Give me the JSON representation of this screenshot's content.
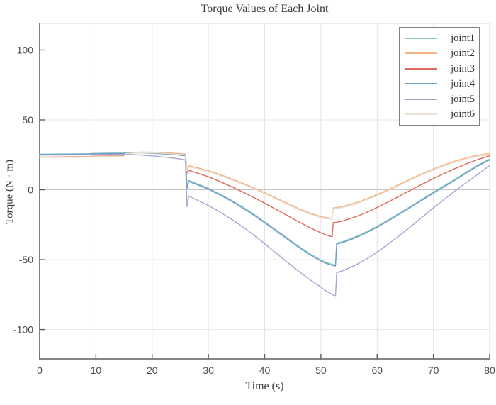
{
  "figure": {
    "title": "Torque Values of Each Joint"
  },
  "chart_data": {
    "type": "line",
    "title": "Torque Values of Each Joint",
    "xlabel": "Time (s)",
    "ylabel": "Torque (N · m)",
    "xlim": [
      0,
      80
    ],
    "ylim": [
      -121,
      119
    ],
    "xticks": [
      0,
      10,
      20,
      30,
      40,
      50,
      60,
      70,
      80
    ],
    "yticks": [
      -100,
      -50,
      0,
      50,
      100
    ],
    "grid": true,
    "legend_position": "top-right",
    "series": [
      {
        "name": "joint1",
        "color": "#8fc5bf",
        "points": [
          [
            0,
            25.5
          ],
          [
            3,
            25.6
          ],
          [
            6,
            25.7
          ],
          [
            9,
            25.8
          ],
          [
            9.2,
            26.0
          ],
          [
            12,
            26.2
          ],
          [
            15,
            26.3
          ],
          [
            15.3,
            26.6
          ],
          [
            18,
            26.6
          ],
          [
            21,
            26.2
          ],
          [
            24,
            25.5
          ],
          [
            25.9,
            24.7
          ],
          [
            26.2,
            1.5
          ],
          [
            26.5,
            6.7
          ],
          [
            28,
            4.3
          ],
          [
            30,
            1.1
          ],
          [
            32,
            -2.9
          ],
          [
            34,
            -7.3
          ],
          [
            36,
            -12.1
          ],
          [
            38,
            -17.3
          ],
          [
            40,
            -22.9
          ],
          [
            42,
            -28.7
          ],
          [
            44,
            -34.5
          ],
          [
            46,
            -40.3
          ],
          [
            48,
            -45.7
          ],
          [
            50,
            -50.3
          ],
          [
            51,
            -52.1
          ],
          [
            52,
            -53.3
          ],
          [
            52.2,
            -53.6
          ],
          [
            52.6,
            -53.9
          ],
          [
            52.8,
            -38.2
          ],
          [
            54,
            -36.9
          ],
          [
            56,
            -33.9
          ],
          [
            58,
            -30.3
          ],
          [
            60,
            -26.1
          ],
          [
            62,
            -21.5
          ],
          [
            64,
            -16.7
          ],
          [
            66,
            -11.7
          ],
          [
            68,
            -6.7
          ],
          [
            70,
            -1.7
          ],
          [
            72,
            3.1
          ],
          [
            74,
            7.9
          ],
          [
            76,
            13.1
          ],
          [
            78,
            17.9
          ],
          [
            80,
            22.0
          ]
        ]
      },
      {
        "name": "joint2",
        "color": "#f2b385",
        "points": [
          [
            0,
            23.4
          ],
          [
            3,
            23.5
          ],
          [
            6,
            23.6
          ],
          [
            9,
            23.7
          ],
          [
            9.2,
            24.0
          ],
          [
            12,
            24.2
          ],
          [
            15,
            24.4
          ],
          [
            15.3,
            26.4
          ],
          [
            18,
            26.9
          ],
          [
            21,
            26.8
          ],
          [
            24,
            26.1
          ],
          [
            25.9,
            25.5
          ],
          [
            26.2,
            14.0
          ],
          [
            26.5,
            17.2
          ],
          [
            28,
            15.8
          ],
          [
            30,
            13.6
          ],
          [
            32,
            11.0
          ],
          [
            34,
            8.0
          ],
          [
            36,
            4.8
          ],
          [
            38,
            1.5
          ],
          [
            40,
            -2.0
          ],
          [
            42,
            -5.8
          ],
          [
            44,
            -9.6
          ],
          [
            46,
            -13.4
          ],
          [
            48,
            -16.6
          ],
          [
            50,
            -19.2
          ],
          [
            51,
            -20.0
          ],
          [
            52,
            -20.4
          ],
          [
            52.2,
            -12.9
          ],
          [
            52.6,
            -12.8
          ],
          [
            52.8,
            -12.7
          ],
          [
            54,
            -11.8
          ],
          [
            56,
            -9.6
          ],
          [
            58,
            -6.8
          ],
          [
            60,
            -3.4
          ],
          [
            62,
            0.2
          ],
          [
            64,
            4.0
          ],
          [
            66,
            7.8
          ],
          [
            68,
            11.5
          ],
          [
            70,
            14.9
          ],
          [
            72,
            18.0
          ],
          [
            74,
            20.7
          ],
          [
            76,
            23.0
          ],
          [
            78,
            24.8
          ],
          [
            80,
            26.0
          ]
        ]
      },
      {
        "name": "joint3",
        "color": "#dd6a5b",
        "points": [
          [
            0,
            23.2
          ],
          [
            3,
            23.3
          ],
          [
            6,
            23.4
          ],
          [
            9,
            23.5
          ],
          [
            9.2,
            23.8
          ],
          [
            12,
            24.0
          ],
          [
            15,
            24.2
          ],
          [
            15.3,
            26.1
          ],
          [
            18,
            26.5
          ],
          [
            21,
            26.3
          ],
          [
            24,
            25.7
          ],
          [
            25.9,
            25.1
          ],
          [
            26.2,
            12.0
          ],
          [
            26.5,
            13.9
          ],
          [
            28,
            12.0
          ],
          [
            30,
            9.3
          ],
          [
            32,
            6.0
          ],
          [
            34,
            2.4
          ],
          [
            36,
            -1.4
          ],
          [
            38,
            -5.4
          ],
          [
            40,
            -9.6
          ],
          [
            42,
            -14.0
          ],
          [
            44,
            -18.4
          ],
          [
            46,
            -22.8
          ],
          [
            48,
            -27.0
          ],
          [
            50,
            -30.8
          ],
          [
            51,
            -32.4
          ],
          [
            52,
            -33.6
          ],
          [
            52.2,
            -23.6
          ],
          [
            52.6,
            -23.4
          ],
          [
            52.8,
            -23.3
          ],
          [
            54,
            -22.2
          ],
          [
            56,
            -19.6
          ],
          [
            58,
            -16.4
          ],
          [
            60,
            -12.6
          ],
          [
            62,
            -8.6
          ],
          [
            64,
            -4.4
          ],
          [
            66,
            -0.2
          ],
          [
            68,
            4.0
          ],
          [
            70,
            8.0
          ],
          [
            72,
            11.8
          ],
          [
            74,
            15.4
          ],
          [
            76,
            18.8
          ],
          [
            78,
            21.8
          ],
          [
            80,
            24.3
          ]
        ]
      },
      {
        "name": "joint4",
        "color": "#6b9ec7",
        "points": [
          [
            0,
            25.2
          ],
          [
            3,
            25.3
          ],
          [
            6,
            25.4
          ],
          [
            9,
            25.5
          ],
          [
            9.2,
            25.7
          ],
          [
            12,
            25.9
          ],
          [
            15,
            26.0
          ],
          [
            15.3,
            26.3
          ],
          [
            18,
            26.3
          ],
          [
            21,
            25.9
          ],
          [
            24,
            25.1
          ],
          [
            25.9,
            24.3
          ],
          [
            26.2,
            0.5
          ],
          [
            26.5,
            6.0
          ],
          [
            28,
            3.6
          ],
          [
            30,
            0.4
          ],
          [
            32,
            -3.6
          ],
          [
            34,
            -8.0
          ],
          [
            36,
            -12.8
          ],
          [
            38,
            -18.0
          ],
          [
            40,
            -23.6
          ],
          [
            42,
            -29.4
          ],
          [
            44,
            -35.2
          ],
          [
            46,
            -41.0
          ],
          [
            48,
            -46.4
          ],
          [
            50,
            -51.0
          ],
          [
            51,
            -52.8
          ],
          [
            52,
            -54.0
          ],
          [
            52.2,
            -54.3
          ],
          [
            52.6,
            -54.6
          ],
          [
            52.8,
            -38.9
          ],
          [
            54,
            -37.6
          ],
          [
            56,
            -34.6
          ],
          [
            58,
            -31.0
          ],
          [
            60,
            -26.8
          ],
          [
            62,
            -22.2
          ],
          [
            64,
            -17.4
          ],
          [
            66,
            -12.4
          ],
          [
            68,
            -7.4
          ],
          [
            70,
            -2.4
          ],
          [
            72,
            2.4
          ],
          [
            74,
            7.2
          ],
          [
            76,
            12.4
          ],
          [
            78,
            17.2
          ],
          [
            80,
            21.4
          ]
        ]
      },
      {
        "name": "joint5",
        "color": "#a8a4d2",
        "points": [
          [
            0,
            24.8
          ],
          [
            3,
            24.9
          ],
          [
            6,
            25.0
          ],
          [
            9,
            25.0
          ],
          [
            9.2,
            25.2
          ],
          [
            12,
            25.3
          ],
          [
            15,
            25.3
          ],
          [
            15.3,
            25.4
          ],
          [
            18,
            24.8
          ],
          [
            21,
            23.9
          ],
          [
            24,
            22.6
          ],
          [
            25.9,
            21.4
          ],
          [
            26.2,
            -12.0
          ],
          [
            26.5,
            -4.5
          ],
          [
            28,
            -7.4
          ],
          [
            30,
            -11.2
          ],
          [
            32,
            -15.8
          ],
          [
            34,
            -20.8
          ],
          [
            36,
            -26.2
          ],
          [
            38,
            -32.2
          ],
          [
            40,
            -38.6
          ],
          [
            42,
            -45.2
          ],
          [
            44,
            -51.8
          ],
          [
            46,
            -58.2
          ],
          [
            48,
            -64.2
          ],
          [
            50,
            -69.6
          ],
          [
            51,
            -72.6
          ],
          [
            52,
            -74.8
          ],
          [
            52.2,
            -75.4
          ],
          [
            52.6,
            -76.2
          ],
          [
            52.8,
            -59.4
          ],
          [
            54,
            -57.8
          ],
          [
            56,
            -54.2
          ],
          [
            58,
            -49.8
          ],
          [
            60,
            -44.6
          ],
          [
            62,
            -38.8
          ],
          [
            64,
            -32.6
          ],
          [
            66,
            -26.2
          ],
          [
            68,
            -19.6
          ],
          [
            70,
            -13.0
          ],
          [
            72,
            -6.6
          ],
          [
            74,
            -0.4
          ],
          [
            76,
            5.6
          ],
          [
            78,
            11.4
          ],
          [
            80,
            17.2
          ]
        ]
      },
      {
        "name": "joint6",
        "color": "#e9e2d2",
        "points": [
          [
            0,
            23.0
          ],
          [
            3,
            23.1
          ],
          [
            6,
            23.2
          ],
          [
            9,
            23.3
          ],
          [
            9.2,
            23.6
          ],
          [
            12,
            23.8
          ],
          [
            15,
            24.0
          ],
          [
            15.3,
            25.9
          ],
          [
            18,
            26.4
          ],
          [
            21,
            26.3
          ],
          [
            24,
            25.6
          ],
          [
            25.9,
            25.0
          ],
          [
            26.2,
            13.4
          ],
          [
            26.5,
            16.4
          ],
          [
            28,
            15.0
          ],
          [
            30,
            12.8
          ],
          [
            32,
            10.2
          ],
          [
            34,
            7.2
          ],
          [
            36,
            4.0
          ],
          [
            38,
            0.7
          ],
          [
            40,
            -2.8
          ],
          [
            42,
            -6.6
          ],
          [
            44,
            -10.4
          ],
          [
            46,
            -14.2
          ],
          [
            48,
            -17.4
          ],
          [
            50,
            -20.0
          ],
          [
            51,
            -20.8
          ],
          [
            52,
            -21.2
          ],
          [
            52.2,
            -13.7
          ],
          [
            52.6,
            -13.6
          ],
          [
            52.8,
            -13.5
          ],
          [
            54,
            -12.6
          ],
          [
            56,
            -10.4
          ],
          [
            58,
            -7.6
          ],
          [
            60,
            -4.2
          ],
          [
            62,
            -0.6
          ],
          [
            64,
            3.2
          ],
          [
            66,
            7.0
          ],
          [
            68,
            10.7
          ],
          [
            70,
            14.1
          ],
          [
            72,
            17.2
          ],
          [
            74,
            19.9
          ],
          [
            76,
            22.2
          ],
          [
            78,
            24.0
          ],
          [
            80,
            25.2
          ]
        ]
      }
    ]
  },
  "colors": {
    "grid": "#e4e4e4",
    "zero_line": "#c6c6c6",
    "axis": "#5f5f5f",
    "box_light": "#dcdcdc",
    "tick_text": "#4a4a4a",
    "legend_border": "#7f7f7f"
  }
}
